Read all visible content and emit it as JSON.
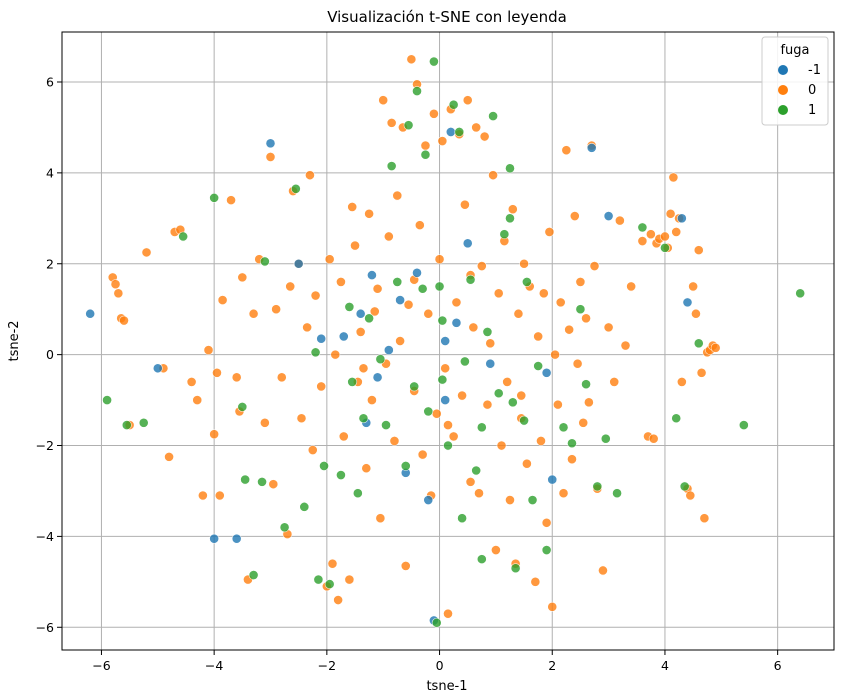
{
  "chart_data": {
    "type": "scatter",
    "title": "Visualización t-SNE con leyenda",
    "xlabel": "tsne-1",
    "ylabel": "tsne-2",
    "xlim": [
      -6.7,
      7.0
    ],
    "ylim": [
      -6.5,
      7.1
    ],
    "xticks": [
      -6,
      -4,
      -2,
      0,
      2,
      4,
      6
    ],
    "yticks": [
      -6,
      -4,
      -2,
      0,
      2,
      4,
      6
    ],
    "xtick_labels": [
      "−6",
      "−4",
      "−2",
      "0",
      "2",
      "4",
      "6"
    ],
    "ytick_labels": [
      "−6",
      "−4",
      "−2",
      "0",
      "2",
      "4",
      "6"
    ],
    "grid": true,
    "legend": {
      "title": "fuga",
      "placement": "top-right"
    },
    "series": [
      {
        "name": "-1",
        "color": "#1f77b4",
        "points": [
          [
            -6.2,
            0.9
          ],
          [
            -5.0,
            -0.3
          ],
          [
            -4.0,
            -4.05
          ],
          [
            -3.6,
            -4.05
          ],
          [
            -3.0,
            4.65
          ],
          [
            -2.5,
            2.0
          ],
          [
            -2.1,
            0.35
          ],
          [
            -1.7,
            0.4
          ],
          [
            -1.4,
            0.9
          ],
          [
            -1.2,
            1.75
          ],
          [
            -1.1,
            -0.5
          ],
          [
            -0.9,
            0.1
          ],
          [
            -0.7,
            1.2
          ],
          [
            -0.4,
            1.8
          ],
          [
            0.1,
            0.3
          ],
          [
            0.2,
            4.9
          ],
          [
            0.3,
            0.7
          ],
          [
            0.5,
            2.45
          ],
          [
            0.9,
            -0.2
          ],
          [
            -0.6,
            -2.6
          ],
          [
            -0.2,
            -3.2
          ],
          [
            0.1,
            -1.0
          ],
          [
            1.9,
            -0.4
          ],
          [
            2.0,
            -2.75
          ],
          [
            2.7,
            4.55
          ],
          [
            3.0,
            3.05
          ],
          [
            4.3,
            3.0
          ],
          [
            4.4,
            1.15
          ],
          [
            -0.1,
            -5.85
          ],
          [
            -1.3,
            -1.5
          ]
        ]
      },
      {
        "name": "0",
        "color": "#ff7f0e",
        "points": [
          [
            -5.8,
            1.7
          ],
          [
            -5.75,
            1.55
          ],
          [
            -5.7,
            1.35
          ],
          [
            -5.65,
            0.8
          ],
          [
            -5.6,
            0.75
          ],
          [
            -5.5,
            -1.55
          ],
          [
            -5.2,
            2.25
          ],
          [
            -4.9,
            -0.3
          ],
          [
            -4.8,
            -2.25
          ],
          [
            -4.7,
            2.7
          ],
          [
            -4.6,
            2.75
          ],
          [
            -4.3,
            -1.0
          ],
          [
            -4.2,
            -3.1
          ],
          [
            -4.1,
            0.1
          ],
          [
            -4.0,
            -1.75
          ],
          [
            -3.9,
            -3.1
          ],
          [
            -3.85,
            1.2
          ],
          [
            -3.7,
            3.4
          ],
          [
            -3.6,
            -0.5
          ],
          [
            -3.5,
            1.7
          ],
          [
            -3.4,
            -4.95
          ],
          [
            -3.3,
            0.9
          ],
          [
            -3.2,
            2.1
          ],
          [
            -3.1,
            -1.5
          ],
          [
            -3.0,
            4.35
          ],
          [
            -2.9,
            1.0
          ],
          [
            -2.8,
            -0.5
          ],
          [
            -2.7,
            -3.95
          ],
          [
            -2.6,
            3.6
          ],
          [
            -2.5,
            2.0
          ],
          [
            -2.45,
            -1.4
          ],
          [
            -2.35,
            0.6
          ],
          [
            -2.3,
            3.95
          ],
          [
            -2.2,
            1.3
          ],
          [
            -2.1,
            -0.7
          ],
          [
            -2.0,
            -5.1
          ],
          [
            -1.95,
            2.1
          ],
          [
            -1.9,
            -4.6
          ],
          [
            -1.85,
            0.0
          ],
          [
            -1.8,
            -5.4
          ],
          [
            -1.75,
            1.6
          ],
          [
            -1.7,
            -1.8
          ],
          [
            -1.6,
            -4.95
          ],
          [
            -1.55,
            3.25
          ],
          [
            -1.5,
            2.4
          ],
          [
            -1.45,
            -0.6
          ],
          [
            -1.4,
            0.5
          ],
          [
            -1.3,
            -2.5
          ],
          [
            -1.25,
            3.1
          ],
          [
            -1.2,
            -1.0
          ],
          [
            -1.1,
            1.45
          ],
          [
            -1.05,
            -3.6
          ],
          [
            -1.0,
            5.6
          ],
          [
            -0.95,
            -0.2
          ],
          [
            -0.9,
            2.6
          ],
          [
            -0.85,
            5.1
          ],
          [
            -0.8,
            -1.9
          ],
          [
            -0.75,
            3.5
          ],
          [
            -0.7,
            0.3
          ],
          [
            -0.65,
            5.0
          ],
          [
            -0.6,
            -4.65
          ],
          [
            -0.55,
            1.1
          ],
          [
            -0.5,
            6.5
          ],
          [
            -0.45,
            -0.8
          ],
          [
            -0.4,
            5.95
          ],
          [
            -0.35,
            2.85
          ],
          [
            -0.3,
            -2.2
          ],
          [
            -0.25,
            4.6
          ],
          [
            -0.2,
            0.9
          ],
          [
            -0.15,
            -3.1
          ],
          [
            -0.1,
            5.3
          ],
          [
            -0.05,
            -1.3
          ],
          [
            0.0,
            2.1
          ],
          [
            0.05,
            4.7
          ],
          [
            0.1,
            -0.3
          ],
          [
            0.15,
            -5.7
          ],
          [
            0.2,
            5.4
          ],
          [
            0.25,
            -1.8
          ],
          [
            0.3,
            1.15
          ],
          [
            0.35,
            4.85
          ],
          [
            0.4,
            -0.9
          ],
          [
            0.45,
            3.3
          ],
          [
            0.5,
            5.6
          ],
          [
            0.55,
            -2.8
          ],
          [
            0.6,
            0.6
          ],
          [
            0.65,
            5.0
          ],
          [
            0.7,
            -3.05
          ],
          [
            0.75,
            1.95
          ],
          [
            0.8,
            4.8
          ],
          [
            0.85,
            -1.1
          ],
          [
            0.9,
            0.25
          ],
          [
            0.95,
            3.95
          ],
          [
            1.0,
            -4.3
          ],
          [
            1.05,
            1.35
          ],
          [
            1.1,
            -2.0
          ],
          [
            1.15,
            2.5
          ],
          [
            1.2,
            -0.6
          ],
          [
            1.25,
            -3.2
          ],
          [
            1.3,
            3.2
          ],
          [
            1.35,
            -4.6
          ],
          [
            1.4,
            0.9
          ],
          [
            1.45,
            -1.4
          ],
          [
            1.5,
            2.0
          ],
          [
            1.55,
            -2.4
          ],
          [
            1.6,
            1.5
          ],
          [
            1.7,
            -5.0
          ],
          [
            1.75,
            0.4
          ],
          [
            1.8,
            -1.9
          ],
          [
            1.85,
            1.35
          ],
          [
            1.9,
            -3.7
          ],
          [
            1.95,
            2.7
          ],
          [
            2.0,
            -5.55
          ],
          [
            2.05,
            0.0
          ],
          [
            2.1,
            -1.1
          ],
          [
            2.15,
            1.15
          ],
          [
            2.2,
            -3.05
          ],
          [
            2.25,
            4.5
          ],
          [
            2.3,
            0.55
          ],
          [
            2.35,
            -2.3
          ],
          [
            2.4,
            3.05
          ],
          [
            2.45,
            -0.2
          ],
          [
            2.5,
            1.6
          ],
          [
            2.55,
            -1.5
          ],
          [
            2.6,
            0.8
          ],
          [
            2.7,
            4.6
          ],
          [
            2.75,
            1.95
          ],
          [
            2.8,
            -2.95
          ],
          [
            2.9,
            -4.75
          ],
          [
            3.0,
            0.6
          ],
          [
            3.1,
            -0.6
          ],
          [
            3.2,
            2.95
          ],
          [
            3.3,
            0.2
          ],
          [
            3.4,
            1.5
          ],
          [
            3.6,
            2.5
          ],
          [
            3.7,
            -1.8
          ],
          [
            3.75,
            2.65
          ],
          [
            3.8,
            -1.85
          ],
          [
            3.85,
            2.45
          ],
          [
            3.9,
            2.55
          ],
          [
            4.0,
            2.6
          ],
          [
            4.05,
            2.35
          ],
          [
            4.1,
            3.1
          ],
          [
            4.15,
            3.9
          ],
          [
            4.2,
            2.7
          ],
          [
            4.25,
            3.0
          ],
          [
            4.3,
            -0.6
          ],
          [
            4.4,
            -2.95
          ],
          [
            4.45,
            -3.1
          ],
          [
            4.5,
            1.5
          ],
          [
            4.55,
            0.9
          ],
          [
            4.6,
            2.3
          ],
          [
            4.65,
            -0.4
          ],
          [
            4.7,
            -3.6
          ],
          [
            4.75,
            0.05
          ],
          [
            4.8,
            0.1
          ],
          [
            4.85,
            0.2
          ],
          [
            4.9,
            0.15
          ],
          [
            -4.4,
            -0.6
          ],
          [
            -3.95,
            -0.4
          ],
          [
            -2.95,
            -2.85
          ],
          [
            -2.65,
            1.5
          ],
          [
            -2.25,
            -2.1
          ],
          [
            -1.35,
            -0.3
          ],
          [
            -0.45,
            1.65
          ],
          [
            0.55,
            1.75
          ],
          [
            1.45,
            -0.9
          ],
          [
            2.65,
            -1.05
          ],
          [
            -3.55,
            -1.25
          ],
          [
            -1.15,
            0.95
          ],
          [
            0.15,
            -1.55
          ]
        ]
      },
      {
        "name": "1",
        "color": "#2ca02c",
        "points": [
          [
            -5.9,
            -1.0
          ],
          [
            -5.55,
            -1.55
          ],
          [
            -5.25,
            -1.5
          ],
          [
            -4.55,
            2.6
          ],
          [
            -4.0,
            3.45
          ],
          [
            -3.5,
            -1.15
          ],
          [
            -3.45,
            -2.75
          ],
          [
            -3.3,
            -4.85
          ],
          [
            -3.15,
            -2.8
          ],
          [
            -3.1,
            2.05
          ],
          [
            -2.75,
            -3.8
          ],
          [
            -2.55,
            3.65
          ],
          [
            -2.4,
            -3.35
          ],
          [
            -2.2,
            0.05
          ],
          [
            -2.15,
            -4.95
          ],
          [
            -2.05,
            -2.45
          ],
          [
            -1.95,
            -5.05
          ],
          [
            -1.75,
            -2.65
          ],
          [
            -1.6,
            1.05
          ],
          [
            -1.55,
            -0.6
          ],
          [
            -1.45,
            -3.05
          ],
          [
            -1.35,
            -1.4
          ],
          [
            -1.25,
            0.8
          ],
          [
            -0.95,
            -1.55
          ],
          [
            -0.85,
            4.15
          ],
          [
            -0.75,
            1.6
          ],
          [
            -0.6,
            -2.45
          ],
          [
            -0.55,
            5.05
          ],
          [
            -0.45,
            -0.7
          ],
          [
            -0.4,
            5.8
          ],
          [
            -0.3,
            1.45
          ],
          [
            -0.25,
            4.4
          ],
          [
            -0.2,
            -1.25
          ],
          [
            -0.1,
            6.45
          ],
          [
            0.0,
            1.5
          ],
          [
            0.05,
            -0.55
          ],
          [
            0.15,
            -2.0
          ],
          [
            0.25,
            5.5
          ],
          [
            0.35,
            4.9
          ],
          [
            0.4,
            -3.6
          ],
          [
            0.45,
            -0.15
          ],
          [
            0.55,
            1.65
          ],
          [
            0.65,
            -2.55
          ],
          [
            0.75,
            -1.6
          ],
          [
            0.85,
            0.5
          ],
          [
            0.95,
            5.25
          ],
          [
            1.05,
            -0.85
          ],
          [
            1.15,
            2.65
          ],
          [
            1.25,
            4.1
          ],
          [
            1.3,
            -1.05
          ],
          [
            1.35,
            -4.7
          ],
          [
            1.5,
            -1.45
          ],
          [
            1.55,
            1.6
          ],
          [
            1.65,
            -3.2
          ],
          [
            1.75,
            -0.25
          ],
          [
            1.9,
            -4.3
          ],
          [
            2.2,
            -1.6
          ],
          [
            2.35,
            -1.95
          ],
          [
            2.5,
            1.0
          ],
          [
            2.6,
            -0.65
          ],
          [
            2.8,
            -2.9
          ],
          [
            2.95,
            -1.85
          ],
          [
            3.15,
            -3.05
          ],
          [
            3.6,
            2.8
          ],
          [
            4.0,
            2.35
          ],
          [
            4.2,
            -1.4
          ],
          [
            4.35,
            -2.9
          ],
          [
            4.6,
            0.25
          ],
          [
            5.4,
            -1.55
          ],
          [
            6.4,
            1.35
          ],
          [
            -0.05,
            -5.9
          ],
          [
            0.05,
            0.75
          ],
          [
            -1.05,
            -0.1
          ],
          [
            0.75,
            -4.5
          ],
          [
            1.25,
            3.0
          ]
        ]
      }
    ]
  }
}
